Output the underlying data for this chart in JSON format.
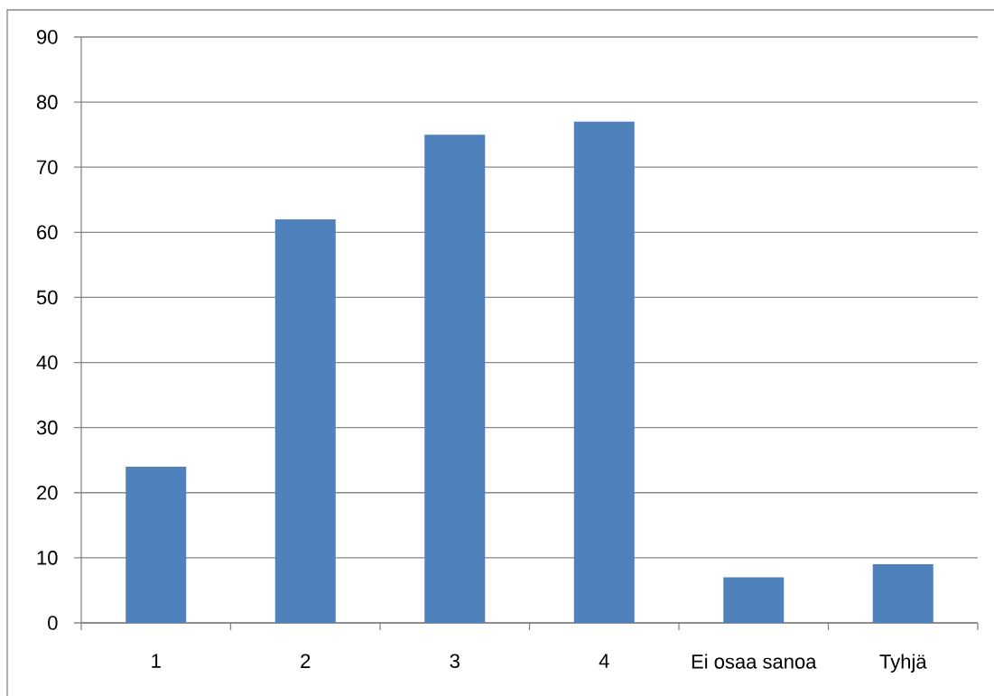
{
  "chart_data": {
    "type": "bar",
    "categories": [
      "1",
      "2",
      "3",
      "4",
      "Ei osaa sanoa",
      "Tyhjä"
    ],
    "values": [
      24,
      62,
      75,
      77,
      7,
      9
    ],
    "color": "#4f81bd",
    "ylim": [
      0,
      90
    ],
    "yticks": [
      0,
      10,
      20,
      30,
      40,
      50,
      60,
      70,
      80,
      90
    ],
    "grid": "y"
  }
}
